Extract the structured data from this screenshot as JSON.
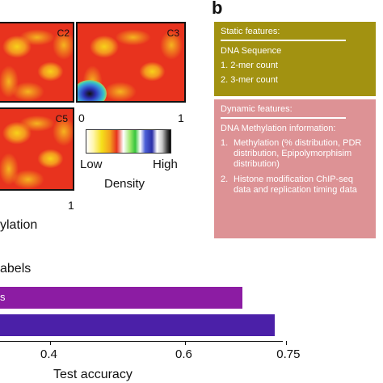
{
  "panel_b_letter": "b",
  "density": {
    "panel_labels": [
      "C2",
      "C3",
      "C5"
    ],
    "c3_x_ticks": [
      "0",
      "1"
    ],
    "c5_x_tick": "1",
    "axis_partial_label": "ylation",
    "colorbar": {
      "low": "Low",
      "high": "High",
      "title": "Density"
    }
  },
  "static_box": {
    "title": "Static features:",
    "subtitle": "DNA Sequence",
    "items": [
      "1. 2-mer count",
      "2. 3-mer count"
    ]
  },
  "dynamic_box": {
    "title": "Dynamic features:",
    "subtitle": "DNA Methylation information:",
    "items": [
      {
        "num": "1.",
        "text": "Methylation (% distribution, PDR distribution, Epipolymorphisim distribution)"
      },
      {
        "num": "2.",
        "text": "Histone modification ChIP-seq data and replication timing data"
      }
    ]
  },
  "bar_section_label": "abels",
  "chart_data": {
    "type": "bar",
    "orientation": "horizontal",
    "xlabel": "Test accuracy",
    "x_ticks": [
      "0.4",
      "0.6",
      "0.75"
    ],
    "x_tick_values": [
      0.4,
      0.6,
      0.75
    ],
    "bars": [
      {
        "label": "s",
        "value": 0.685,
        "color": "#8c1ca3"
      },
      {
        "label": "",
        "value": 0.733,
        "color": "#4b20a8"
      }
    ]
  }
}
